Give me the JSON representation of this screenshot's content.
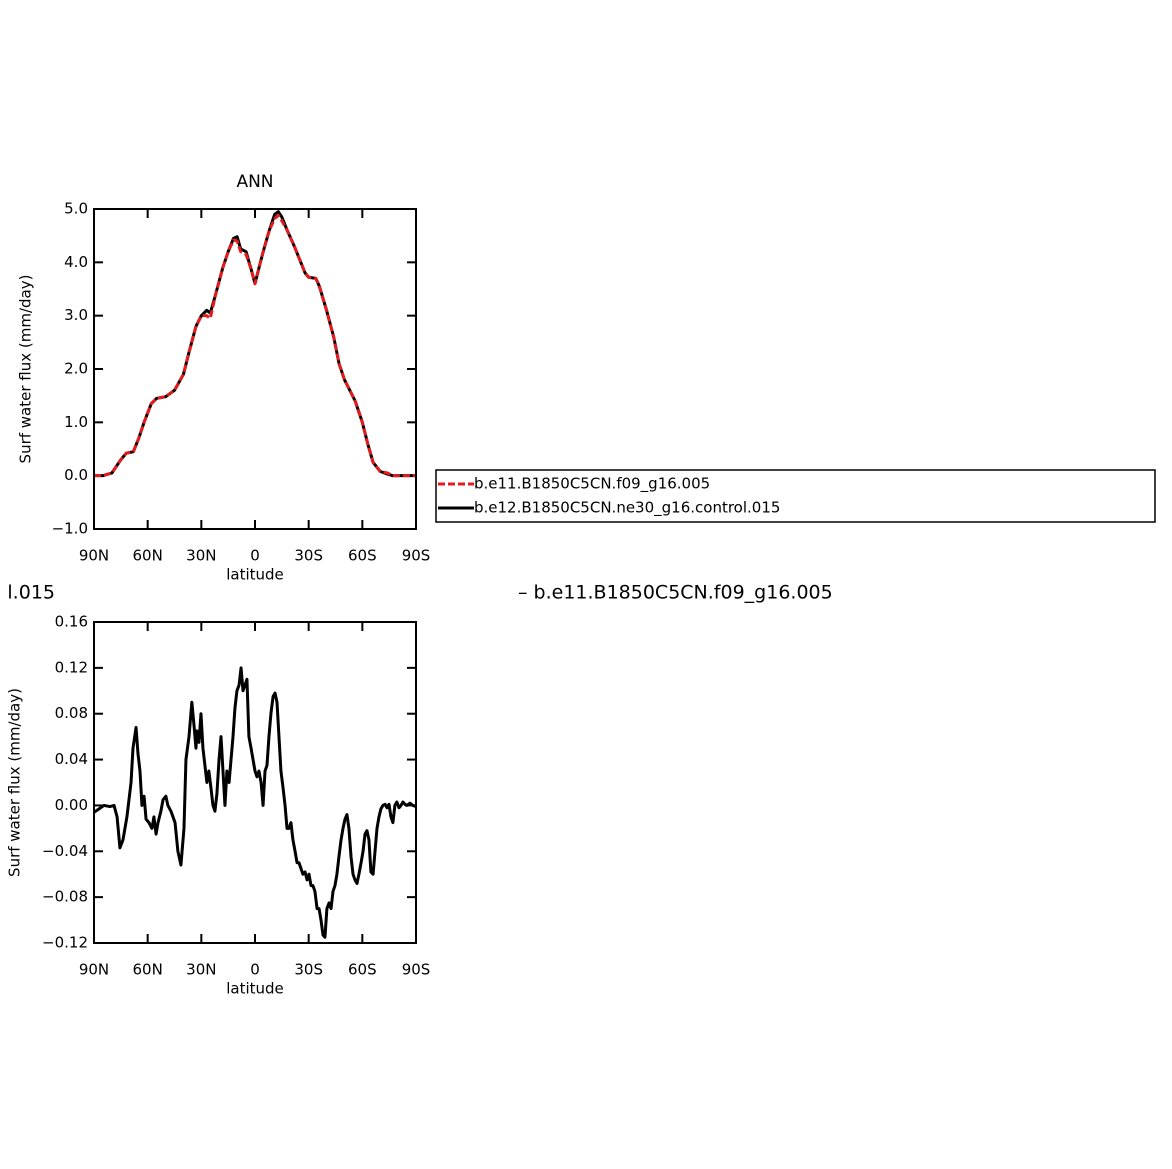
{
  "chart_data": [
    {
      "type": "line",
      "title": "ANN",
      "xlabel": "latitude",
      "ylabel": "Surf water flux (mm/day)",
      "xlim": [
        90,
        -90
      ],
      "xticks": [
        {
          "value": 90,
          "label": "90N"
        },
        {
          "value": 60,
          "label": "60N"
        },
        {
          "value": 30,
          "label": "30N"
        },
        0,
        {
          "value": -30,
          "label": "30S"
        },
        {
          "value": -60,
          "label": "60S"
        },
        {
          "value": -90,
          "label": "90S"
        }
      ],
      "ylim": [
        -1,
        5
      ],
      "yticks": [
        {
          "value": 5,
          "label": "5.0"
        },
        {
          "value": 4,
          "label": "4.0"
        },
        {
          "value": 3,
          "label": "3.0"
        },
        {
          "value": 2,
          "label": "2.0"
        },
        {
          "value": 1,
          "label": "1.0"
        },
        {
          "value": 0,
          "label": "0.0"
        },
        {
          "value": -1,
          "label": "−1.0"
        }
      ],
      "legend": "right",
      "x": [
        90,
        85,
        80,
        75,
        72,
        68,
        65,
        62,
        58,
        55,
        50,
        45,
        40,
        37,
        33,
        30,
        27,
        25,
        22,
        18,
        15,
        12,
        10,
        8,
        5,
        2,
        0,
        -3,
        -5,
        -8,
        -11,
        -13,
        -15,
        -18,
        -22,
        -25,
        -28,
        -30,
        -34,
        -36,
        -40,
        -44,
        -47,
        -50,
        -53,
        -56,
        -60,
        -63,
        -66,
        -70,
        -74,
        -77,
        -80,
        -85,
        -90
      ],
      "series": [
        {
          "name": "b.e11.B1850C5CN.f09_g16.005",
          "color": "#e41a1c",
          "linestyle": "dashed",
          "values": [
            0,
            0,
            0.05,
            0.3,
            0.42,
            0.45,
            0.7,
            1.0,
            1.35,
            1.45,
            1.48,
            1.6,
            1.9,
            2.3,
            2.8,
            3.0,
            3.0,
            2.95,
            3.4,
            3.9,
            4.2,
            4.42,
            4.4,
            4.2,
            4.15,
            3.85,
            3.6,
            4.0,
            4.25,
            4.6,
            4.82,
            4.88,
            4.78,
            4.6,
            4.3,
            4.05,
            3.8,
            3.72,
            3.7,
            3.55,
            3.1,
            2.6,
            2.1,
            1.8,
            1.6,
            1.4,
            1.0,
            0.6,
            0.25,
            0.08,
            0.05,
            0,
            0,
            0,
            0
          ]
        },
        {
          "name": "b.e12.B1850C5CN.ne30_g16.control.015",
          "color": "#000000",
          "linestyle": "solid",
          "values": [
            0,
            0,
            0.05,
            0.3,
            0.42,
            0.45,
            0.7,
            1.0,
            1.35,
            1.45,
            1.48,
            1.6,
            1.9,
            2.3,
            2.8,
            3.0,
            3.1,
            3.05,
            3.4,
            3.9,
            4.2,
            4.45,
            4.48,
            4.25,
            4.2,
            3.85,
            3.6,
            4.0,
            4.25,
            4.6,
            4.9,
            4.95,
            4.85,
            4.6,
            4.3,
            4.05,
            3.8,
            3.72,
            3.7,
            3.55,
            3.1,
            2.6,
            2.1,
            1.8,
            1.6,
            1.4,
            1.0,
            0.6,
            0.25,
            0.08,
            0.03,
            0,
            0,
            0,
            0
          ]
        }
      ]
    },
    {
      "type": "line",
      "title_fragments": [
        "l.015",
        "– b.e11.B1850C5CN.f09_g16.005"
      ],
      "xlabel": "latitude",
      "ylabel": "Surf water flux (mm/day)",
      "xlim": [
        90,
        -90
      ],
      "xticks": [
        {
          "value": 90,
          "label": "90N"
        },
        {
          "value": 60,
          "label": "60N"
        },
        {
          "value": 30,
          "label": "30N"
        },
        0,
        {
          "value": -30,
          "label": "30S"
        },
        {
          "value": -60,
          "label": "60S"
        },
        {
          "value": -90,
          "label": "90S"
        }
      ],
      "ylim": [
        -0.12,
        0.16
      ],
      "yticks": [
        0.16,
        0.12,
        0.08,
        0.04,
        {
          "value": 0,
          "label": "0.00"
        },
        {
          "value": -0.04,
          "label": "−0.04"
        },
        {
          "value": -0.08,
          "label": "−0.08"
        },
        {
          "value": -0.12,
          "label": "−0.12"
        }
      ],
      "x": [
        90,
        87.2,
        84.4,
        81.1,
        78.8,
        77.1,
        75.5,
        73.8,
        71.6,
        69.3,
        68.2,
        66.5,
        65.4,
        64.3,
        63.2,
        62.0,
        60.9,
        59.3,
        57.6,
        56.5,
        55.3,
        54.2,
        52.6,
        51.4,
        49.8,
        48.7,
        47.0,
        44.7,
        43.1,
        41.4,
        39.7,
        38.6,
        36.9,
        35.3,
        34.1,
        33.0,
        32.5,
        31.3,
        30.2,
        29.1,
        28.0,
        26.9,
        25.8,
        24.6,
        23.5,
        22.4,
        21.3,
        20.1,
        19.0,
        17.9,
        16.8,
        15.7,
        14.5,
        13.4,
        12.3,
        11.2,
        10.1,
        8.9,
        7.8,
        6.7,
        5.6,
        4.5,
        3.4,
        2.2,
        1.1,
        0,
        -1.1,
        -2.2,
        -3.4,
        -4.5,
        -5.6,
        -6.7,
        -7.8,
        -8.9,
        -10.1,
        -11.2,
        -12.3,
        -13.4,
        -14.5,
        -15.7,
        -16.8,
        -17.9,
        -19.0,
        -20.1,
        -21.2,
        -22.4,
        -23.5,
        -24.6,
        -25.7,
        -26.8,
        -28.0,
        -29.1,
        -30.2,
        -31.3,
        -32.4,
        -33.5,
        -34.7,
        -35.8,
        -36.9,
        -38.0,
        -39.1,
        -40.2,
        -41.4,
        -42.5,
        -43.6,
        -44.7,
        -45.8,
        -46.9,
        -48.1,
        -49.2,
        -50.3,
        -51.4,
        -52.5,
        -53.7,
        -54.8,
        -55.9,
        -57.0,
        -58.1,
        -59.3,
        -60.4,
        -61.5,
        -62.6,
        -63.7,
        -64.8,
        -66.0,
        -67.1,
        -68.2,
        -69.3,
        -70.4,
        -71.5,
        -72.7,
        -73.8,
        -74.9,
        -76.0,
        -77.1,
        -78.2,
        -79.3,
        -80.5,
        -81.6,
        -82.7,
        -83.8,
        -84.9,
        -86.6,
        -88.3,
        -90
      ],
      "series": [
        {
          "color": "#000000",
          "linestyle": "solid",
          "values": [
            -0.006,
            -0.003,
            0.0,
            -0.001,
            0.0,
            -0.01,
            -0.037,
            -0.03,
            -0.01,
            0.02,
            0.05,
            0.068,
            0.045,
            0.03,
            0.0,
            0.008,
            -0.012,
            -0.015,
            -0.02,
            -0.01,
            -0.025,
            -0.015,
            -0.005,
            0.005,
            0.008,
            0.0,
            -0.005,
            -0.015,
            -0.04,
            -0.052,
            -0.02,
            0.04,
            0.06,
            0.09,
            0.07,
            0.05,
            0.065,
            0.055,
            0.08,
            0.05,
            0.035,
            0.02,
            0.03,
            0.015,
            0.0,
            -0.005,
            0.01,
            0.04,
            0.06,
            0.03,
            0.0,
            0.03,
            0.02,
            0.04,
            0.06,
            0.085,
            0.1,
            0.105,
            0.12,
            0.1,
            0.105,
            0.11,
            0.06,
            0.05,
            0.04,
            0.03,
            0.025,
            0.03,
            0.02,
            0.0,
            0.03,
            0.035,
            0.06,
            0.08,
            0.095,
            0.098,
            0.09,
            0.06,
            0.03,
            0.015,
            0.0,
            -0.02,
            -0.02,
            -0.015,
            -0.03,
            -0.04,
            -0.05,
            -0.05,
            -0.055,
            -0.06,
            -0.058,
            -0.065,
            -0.06,
            -0.07,
            -0.07,
            -0.075,
            -0.09,
            -0.09,
            -0.1,
            -0.113,
            -0.115,
            -0.09,
            -0.085,
            -0.09,
            -0.075,
            -0.07,
            -0.06,
            -0.045,
            -0.03,
            -0.02,
            -0.012,
            -0.008,
            -0.02,
            -0.045,
            -0.06,
            -0.065,
            -0.068,
            -0.06,
            -0.05,
            -0.04,
            -0.025,
            -0.022,
            -0.03,
            -0.058,
            -0.06,
            -0.04,
            -0.02,
            -0.01,
            -0.003,
            0.0,
            0.001,
            -0.002,
            0.001,
            -0.01,
            -0.015,
            0.0,
            0.003,
            -0.002,
            0.0,
            0.003,
            0.001,
            0.0,
            0.002,
            0.0,
            -0.001
          ]
        }
      ]
    }
  ]
}
